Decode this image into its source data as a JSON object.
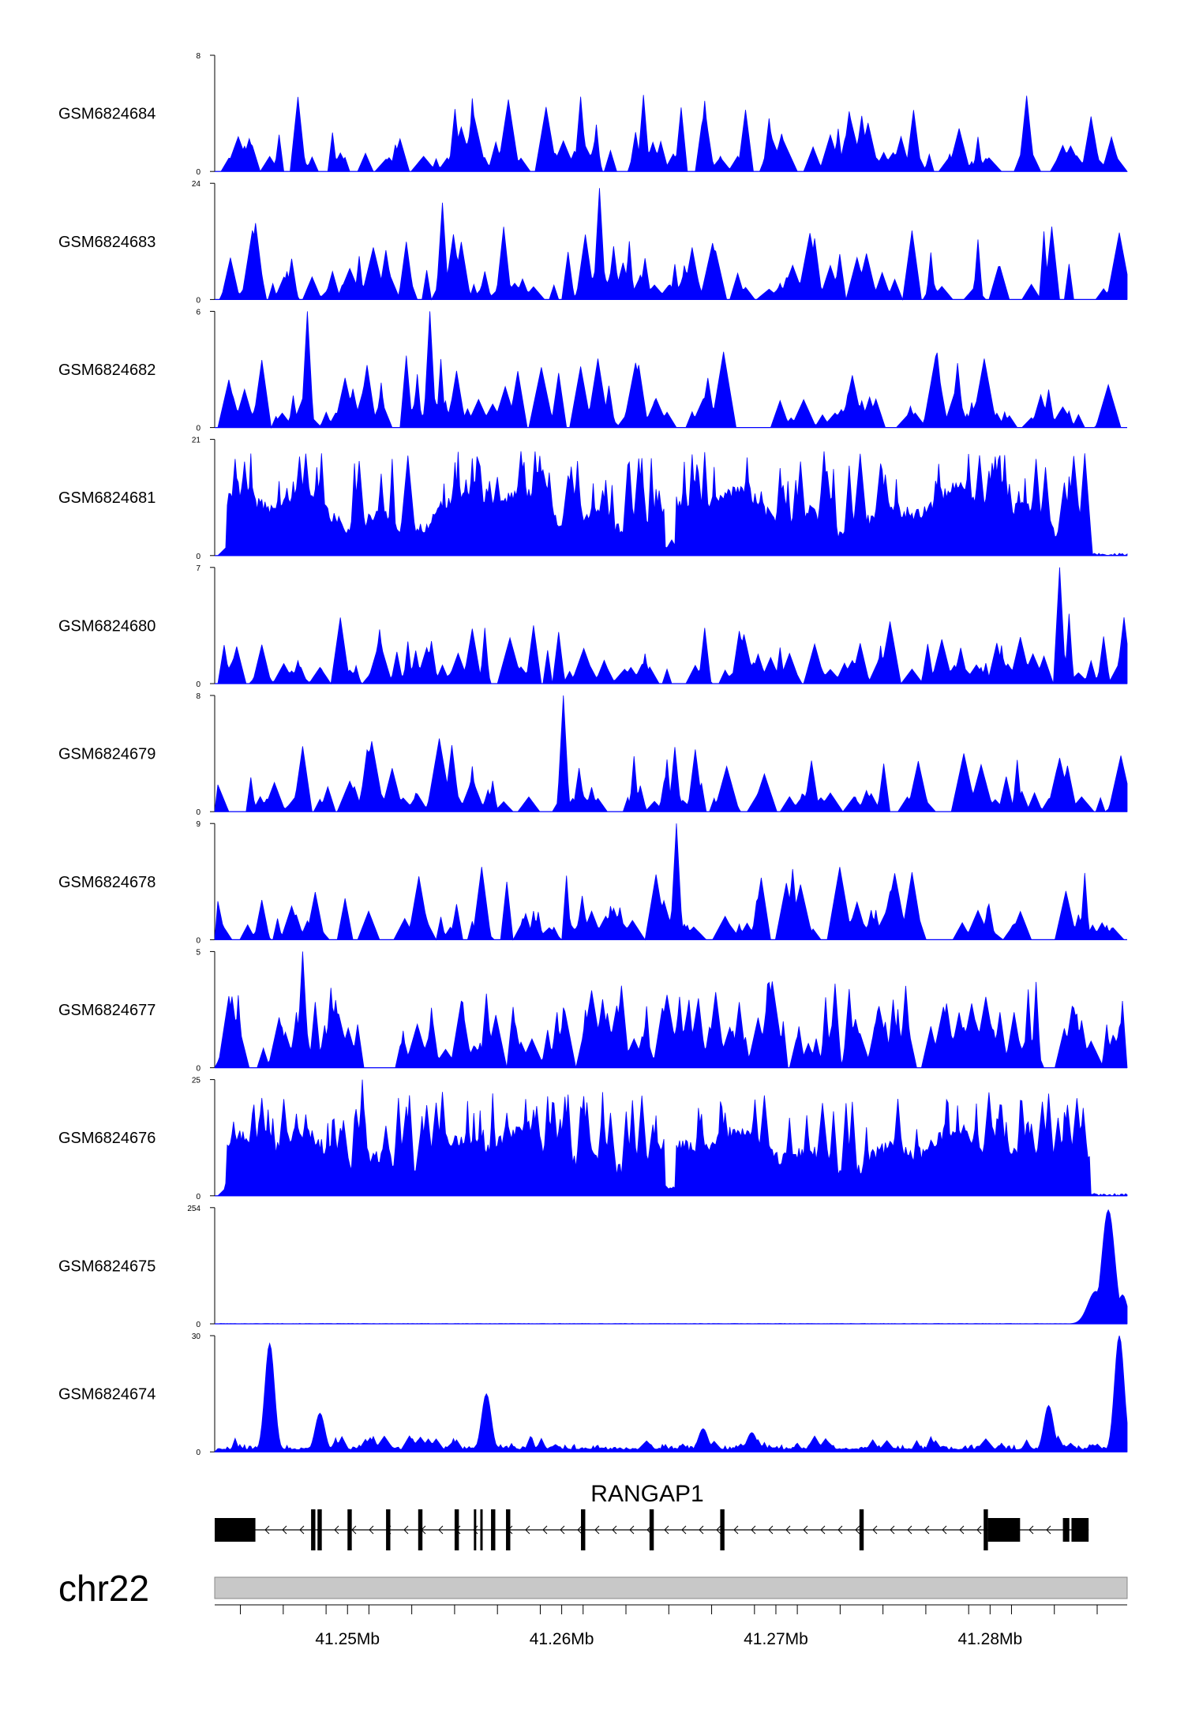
{
  "chart_data": {
    "type": "area",
    "tracks": [
      {
        "name": "GSM6824684",
        "ymax": 8,
        "ymin": 0,
        "seed": 11,
        "profile": "sparse",
        "peaks": []
      },
      {
        "name": "GSM6824683",
        "ymax": 24,
        "ymin": 0,
        "seed": 23,
        "profile": "sparse",
        "peaks": [
          [
            41.2543,
            20
          ],
          [
            41.2617,
            23
          ]
        ]
      },
      {
        "name": "GSM6824682",
        "ymax": 6,
        "ymin": 0,
        "seed": 37,
        "profile": "sparse",
        "peaks": [
          [
            41.248,
            6
          ],
          [
            41.2537,
            6
          ]
        ]
      },
      {
        "name": "GSM6824681",
        "ymax": 21,
        "ymin": 0,
        "seed": 41,
        "profile": "dense",
        "peaks": []
      },
      {
        "name": "GSM6824680",
        "ymax": 7,
        "ymin": 0,
        "seed": 53,
        "profile": "sparse",
        "peaks": [
          [
            41.2832,
            7
          ]
        ]
      },
      {
        "name": "GSM6824679",
        "ymax": 8,
        "ymin": 0,
        "seed": 67,
        "profile": "sparse",
        "peaks": [
          [
            41.26,
            8
          ]
        ]
      },
      {
        "name": "GSM6824678",
        "ymax": 9,
        "ymin": 0,
        "seed": 71,
        "profile": "sparse",
        "peaks": [
          [
            41.2653,
            9
          ]
        ]
      },
      {
        "name": "GSM6824677",
        "ymax": 5,
        "ymin": 0,
        "seed": 83,
        "profile": "medium",
        "peaks": [
          [
            41.2478,
            5
          ]
        ]
      },
      {
        "name": "GSM6824676",
        "ymax": 25,
        "ymin": 0,
        "seed": 97,
        "profile": "dense",
        "peaks": [
          [
            41.2506,
            25
          ]
        ]
      },
      {
        "name": "GSM6824675",
        "ymax": 254,
        "ymin": 0,
        "seed": 101,
        "profile": "promoter",
        "peaks": []
      },
      {
        "name": "GSM6824674",
        "ymax": 30,
        "ymin": 0,
        "seed": 113,
        "profile": "peaks",
        "peaks": [
          [
            41.2462,
            28
          ],
          [
            41.2486,
            10
          ],
          [
            41.2564,
            15
          ],
          [
            41.2665,
            6
          ],
          [
            41.2688,
            5
          ],
          [
            41.2827,
            12
          ],
          [
            41.286,
            30
          ]
        ]
      }
    ],
    "x_axis": {
      "unit": "Mb",
      "range": [
        41.2438,
        41.2864
      ],
      "ticks": [
        41.245,
        41.247,
        41.249,
        41.251,
        41.253,
        41.255,
        41.257,
        41.259,
        41.261,
        41.263,
        41.265,
        41.267,
        41.269,
        41.271,
        41.273,
        41.275,
        41.277,
        41.279,
        41.281,
        41.283,
        41.285
      ],
      "tick_labels": [
        {
          "value": 41.25,
          "label": "41.25Mb"
        },
        {
          "value": 41.26,
          "label": "41.26Mb"
        },
        {
          "value": 41.27,
          "label": "41.27Mb"
        },
        {
          "value": 41.28,
          "label": "41.28Mb"
        }
      ]
    },
    "chromosome": "chr22",
    "gene": {
      "name": "RANGAP1",
      "strand": "-",
      "start": 41.2438,
      "end": 41.2846,
      "exons": [
        [
          41.2438,
          41.2457,
          "utr"
        ],
        [
          41.2483,
          41.2485,
          "cds"
        ],
        [
          41.2486,
          41.2488,
          "cds"
        ],
        [
          41.25,
          41.2502,
          "cds"
        ],
        [
          41.2518,
          41.252,
          "cds"
        ],
        [
          41.2533,
          41.2535,
          "cds"
        ],
        [
          41.255,
          41.2552,
          "cds"
        ],
        [
          41.2559,
          41.256,
          "cds"
        ],
        [
          41.2562,
          41.2563,
          "cds"
        ],
        [
          41.2567,
          41.2569,
          "cds"
        ],
        [
          41.2574,
          41.2576,
          "cds"
        ],
        [
          41.2609,
          41.2611,
          "cds"
        ],
        [
          41.2641,
          41.2643,
          "cds"
        ],
        [
          41.2674,
          41.2676,
          "cds"
        ],
        [
          41.2739,
          41.2741,
          "cds"
        ],
        [
          41.2797,
          41.2799,
          "cds"
        ],
        [
          41.2799,
          41.2814,
          "utr"
        ],
        [
          41.2834,
          41.2837,
          "utr"
        ],
        [
          41.2838,
          41.2846,
          "utr"
        ]
      ]
    },
    "colors": {
      "signal": "#0000ff",
      "gene": "#000000",
      "ideogram_fill": "#c8c8c8",
      "ideogram_stroke": "#888888",
      "axis": "#000000"
    }
  }
}
